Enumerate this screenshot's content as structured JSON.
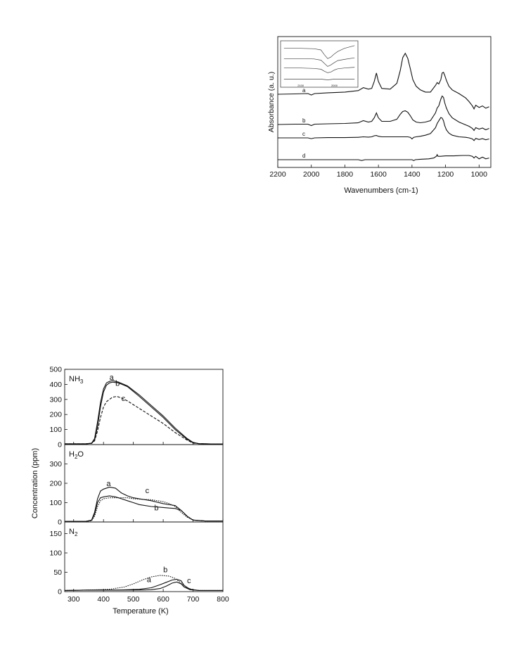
{
  "chart_data": [
    {
      "type": "line",
      "title": "",
      "xlabel": "Wavenumbers (cm-1)",
      "ylabel": "Absorbance (a. u.)",
      "xlim": [
        2200,
        930
      ],
      "x_reversed": true,
      "xticks": [
        2200,
        2000,
        1800,
        1600,
        1400,
        1200,
        1000
      ],
      "grid": false,
      "series": [
        {
          "name": "a",
          "x": [
            2200,
            2100,
            2020,
            2000,
            1980,
            1900,
            1800,
            1720,
            1690,
            1660,
            1640,
            1625,
            1612,
            1600,
            1580,
            1530,
            1490,
            1470,
            1455,
            1440,
            1425,
            1410,
            1395,
            1375,
            1350,
            1320,
            1290,
            1260,
            1250,
            1240,
            1228,
            1220,
            1212,
            1205,
            1195,
            1180,
            1160,
            1120,
            1080,
            1060,
            1040,
            1030,
            1020,
            1000,
            980,
            960,
            940
          ],
          "y": [
            0.6,
            0.61,
            0.62,
            0.58,
            0.62,
            0.64,
            0.66,
            0.7,
            0.78,
            0.74,
            0.76,
            0.95,
            1.18,
            0.95,
            0.76,
            0.74,
            0.9,
            1.25,
            1.6,
            1.72,
            1.58,
            1.3,
            1.0,
            0.82,
            0.72,
            0.66,
            0.66,
            0.84,
            0.92,
            0.88,
            1.0,
            1.18,
            1.2,
            1.12,
            0.98,
            0.82,
            0.72,
            0.62,
            0.5,
            0.4,
            0.28,
            0.2,
            0.3,
            0.24,
            0.28,
            0.22,
            0.26
          ]
        },
        {
          "name": "b",
          "x": [
            2200,
            2100,
            2020,
            2000,
            1980,
            1900,
            1800,
            1720,
            1690,
            1660,
            1640,
            1625,
            1612,
            1600,
            1580,
            1530,
            1490,
            1470,
            1455,
            1440,
            1425,
            1410,
            1395,
            1375,
            1350,
            1320,
            1290,
            1260,
            1250,
            1240,
            1228,
            1220,
            1212,
            1205,
            1195,
            1180,
            1160,
            1120,
            1080,
            1060,
            1040,
            1030,
            1020,
            1000,
            980,
            960,
            940
          ],
          "y": [
            0.33,
            0.34,
            0.34,
            0.3,
            0.34,
            0.35,
            0.36,
            0.38,
            0.44,
            0.4,
            0.42,
            0.52,
            0.66,
            0.52,
            0.42,
            0.42,
            0.48,
            0.62,
            0.7,
            0.72,
            0.68,
            0.58,
            0.46,
            0.4,
            0.38,
            0.4,
            0.44,
            0.66,
            0.8,
            0.86,
            1.05,
            1.14,
            1.1,
            0.95,
            0.8,
            0.64,
            0.52,
            0.4,
            0.32,
            0.28,
            0.22,
            0.16,
            0.24,
            0.2,
            0.23,
            0.18,
            0.22
          ]
        },
        {
          "name": "c",
          "x": [
            2200,
            2100,
            2020,
            2000,
            1980,
            1900,
            1800,
            1720,
            1690,
            1660,
            1640,
            1625,
            1612,
            1600,
            1580,
            1530,
            1490,
            1470,
            1455,
            1440,
            1425,
            1410,
            1400,
            1390,
            1375,
            1350,
            1320,
            1290,
            1260,
            1250,
            1240,
            1228,
            1220,
            1212,
            1205,
            1195,
            1180,
            1160,
            1120,
            1080,
            1060,
            1040,
            1030,
            1020,
            1000,
            980,
            960,
            940
          ],
          "y": [
            0.24,
            0.24,
            0.24,
            0.21,
            0.24,
            0.25,
            0.25,
            0.26,
            0.28,
            0.27,
            0.28,
            0.32,
            0.33,
            0.3,
            0.28,
            0.28,
            0.28,
            0.28,
            0.28,
            0.28,
            0.28,
            0.26,
            0.2,
            0.26,
            0.28,
            0.3,
            0.34,
            0.4,
            0.62,
            0.78,
            0.88,
            1.0,
            0.98,
            0.88,
            0.7,
            0.54,
            0.42,
            0.34,
            0.28,
            0.26,
            0.24,
            0.2,
            0.14,
            0.22,
            0.18,
            0.21,
            0.17,
            0.2
          ]
        },
        {
          "name": "d",
          "x": [
            2200,
            2100,
            2000,
            1900,
            1800,
            1720,
            1700,
            1680,
            1600,
            1500,
            1420,
            1400,
            1390,
            1380,
            1350,
            1300,
            1270,
            1255,
            1250,
            1245,
            1230,
            1200,
            1150,
            1100,
            1060,
            1040,
            1030,
            1020,
            1000,
            980,
            960,
            940
          ],
          "y": [
            0.04,
            0.04,
            0.04,
            0.04,
            0.04,
            0.04,
            0.02,
            0.04,
            0.04,
            0.04,
            0.04,
            0.04,
            0.02,
            0.04,
            0.05,
            0.06,
            0.08,
            0.12,
            0.16,
            0.12,
            0.12,
            0.13,
            0.13,
            0.14,
            0.14,
            0.12,
            0.08,
            0.12,
            0.06,
            0.1,
            0.06,
            0.08
          ]
        }
      ],
      "curve_labels": [
        "a",
        "b",
        "c",
        "d"
      ],
      "inset": {
        "ticks": [
          "2100",
          "2000"
        ],
        "series": [
          {
            "x": [
              2150,
              2100,
              2060,
              2040,
              2030,
              2020,
              2010,
              2000,
              1990,
              1970,
              1940
            ],
            "y": [
              0.88,
              0.88,
              0.87,
              0.84,
              0.72,
              0.62,
              0.66,
              0.74,
              0.8,
              0.88,
              0.95
            ]
          },
          {
            "x": [
              2150,
              2100,
              2060,
              2040,
              2030,
              2020,
              2010,
              2000,
              1990,
              1970,
              1940
            ],
            "y": [
              0.62,
              0.62,
              0.61,
              0.58,
              0.5,
              0.42,
              0.46,
              0.52,
              0.57,
              0.6,
              0.64
            ]
          },
          {
            "x": [
              2150,
              2100,
              2060,
              2040,
              2030,
              2020,
              2010,
              2000,
              1990,
              1970,
              1940
            ],
            "y": [
              0.38,
              0.38,
              0.37,
              0.35,
              0.3,
              0.26,
              0.28,
              0.33,
              0.36,
              0.38,
              0.4
            ]
          },
          {
            "x": [
              2150,
              2100,
              2060,
              2040,
              2030,
              2020,
              2010,
              2000,
              1990,
              1970,
              1940
            ],
            "y": [
              0.1,
              0.1,
              0.1,
              0.1,
              0.09,
              0.08,
              0.09,
              0.1,
              0.1,
              0.1,
              0.1
            ]
          }
        ]
      }
    },
    {
      "type": "line",
      "title": "",
      "xlabel": "Temperature (K)",
      "ylabel": "Concentration (ppm)",
      "xlim": [
        270,
        800
      ],
      "xticks": [
        300,
        400,
        500,
        600,
        700,
        800
      ],
      "grid": false,
      "panels": [
        {
          "label_main": "NH",
          "label_sub": "3",
          "ylim": [
            0,
            500
          ],
          "yticks": [
            0,
            100,
            200,
            300,
            400,
            500
          ],
          "series": [
            {
              "name": "a",
              "x": [
                270,
                300,
                340,
                360,
                370,
                380,
                390,
                400,
                410,
                420,
                430,
                450,
                480,
                520,
                560,
                600,
                640,
                680,
                700,
                720,
                760,
                800
              ],
              "y": [
                5,
                5,
                5,
                10,
                40,
                150,
                280,
                370,
                410,
                420,
                425,
                415,
                390,
                330,
                260,
                190,
                110,
                40,
                15,
                6,
                4,
                4
              ]
            },
            {
              "name": "b",
              "x": [
                270,
                300,
                340,
                360,
                370,
                380,
                390,
                400,
                410,
                420,
                430,
                450,
                480,
                520,
                560,
                600,
                640,
                680,
                700,
                720,
                760,
                800
              ],
              "y": [
                5,
                5,
                5,
                8,
                30,
                120,
                250,
                350,
                395,
                410,
                415,
                410,
                385,
                320,
                250,
                180,
                100,
                35,
                12,
                6,
                4,
                4
              ]
            },
            {
              "name": "c",
              "x": [
                270,
                300,
                340,
                360,
                370,
                380,
                390,
                400,
                410,
                420,
                430,
                445,
                460,
                480,
                520,
                560,
                600,
                640,
                680,
                700,
                720,
                760,
                800
              ],
              "y": [
                5,
                5,
                5,
                8,
                25,
                90,
                180,
                250,
                285,
                300,
                315,
                320,
                310,
                290,
                240,
                190,
                140,
                80,
                30,
                10,
                6,
                4,
                4
              ]
            }
          ],
          "curve_labels": [
            "a",
            "b",
            "c"
          ]
        },
        {
          "label_main": "H",
          "label_sub": "2",
          "label_tail": "O",
          "ylim": [
            0,
            400
          ],
          "yticks": [
            0,
            100,
            200,
            300
          ],
          "series": [
            {
              "name": "a",
              "x": [
                270,
                340,
                360,
                370,
                380,
                390,
                400,
                420,
                440,
                460,
                480,
                500,
                520,
                560,
                600,
                620,
                640,
                660,
                680,
                700,
                740,
                800
              ],
              "y": [
                3,
                3,
                10,
                50,
                120,
                160,
                170,
                180,
                175,
                150,
                135,
                125,
                120,
                110,
                95,
                90,
                85,
                60,
                30,
                10,
                5,
                5
              ]
            },
            {
              "name": "b",
              "x": [
                270,
                340,
                360,
                370,
                380,
                390,
                400,
                420,
                440,
                460,
                480,
                500,
                520,
                560,
                600,
                620,
                640,
                660,
                680,
                700,
                740,
                800
              ],
              "y": [
                3,
                3,
                8,
                40,
                100,
                125,
                130,
                135,
                130,
                120,
                110,
                100,
                90,
                80,
                75,
                72,
                70,
                60,
                30,
                10,
                5,
                5
              ]
            },
            {
              "name": "c",
              "x": [
                270,
                340,
                360,
                370,
                380,
                390,
                400,
                420,
                440,
                460,
                480,
                500,
                520,
                560,
                600,
                620,
                640,
                660,
                680,
                700,
                740,
                800
              ],
              "y": [
                3,
                3,
                6,
                30,
                80,
                110,
                120,
                125,
                125,
                125,
                125,
                120,
                118,
                115,
                105,
                95,
                80,
                50,
                25,
                10,
                5,
                5
              ]
            }
          ],
          "curve_labels": [
            "a",
            "b",
            "c"
          ]
        },
        {
          "label_main": "N",
          "label_sub": "2",
          "ylim": [
            0,
            180
          ],
          "yticks": [
            0,
            50,
            100,
            150
          ],
          "series": [
            {
              "name": "a",
              "x": [
                270,
                350,
                450,
                520,
                560,
                590,
                610,
                630,
                645,
                660,
                670,
                690,
                720,
                800
              ],
              "y": [
                3,
                4,
                4,
                4,
                5,
                8,
                14,
                22,
                25,
                20,
                12,
                5,
                3,
                3
              ]
            },
            {
              "name": "b",
              "x": [
                270,
                350,
                450,
                520,
                560,
                590,
                610,
                630,
                645,
                660,
                670,
                690,
                720,
                800
              ],
              "y": [
                3,
                4,
                4,
                6,
                10,
                18,
                24,
                30,
                32,
                28,
                16,
                6,
                3,
                3
              ]
            },
            {
              "name": "c",
              "x": [
                270,
                350,
                420,
                470,
                500,
                530,
                560,
                590,
                620,
                640,
                660,
                680,
                700,
                720,
                800
              ],
              "y": [
                3,
                4,
                6,
                12,
                20,
                30,
                38,
                42,
                40,
                34,
                22,
                10,
                5,
                3,
                3
              ]
            }
          ],
          "curve_labels": [
            "c",
            "b",
            "a"
          ]
        }
      ]
    }
  ]
}
